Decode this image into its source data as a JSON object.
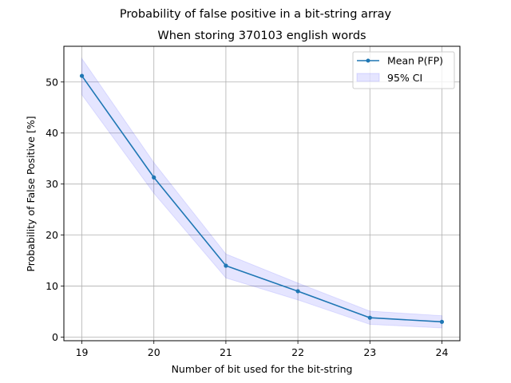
{
  "chart_data": {
    "type": "line",
    "suptitle": "Probability of false positive in a bit-string array",
    "title": "When storing 370103 english words",
    "xlabel": "Number of bit used for the bit-string",
    "ylabel": "Probability of False Positive [%]",
    "x": [
      19,
      20,
      21,
      22,
      23,
      24
    ],
    "series": [
      {
        "name": "Mean P(FP)",
        "values": [
          51.2,
          31.3,
          14.0,
          9.0,
          3.8,
          3.0
        ],
        "color": "#1f77b4"
      }
    ],
    "ci": {
      "name": "95% CI",
      "lower": [
        47.5,
        28.2,
        11.6,
        7.3,
        2.5,
        1.8
      ],
      "upper": [
        54.6,
        34.2,
        16.3,
        10.6,
        5.1,
        4.2
      ],
      "color": "#0000ff"
    },
    "xticks": [
      "19",
      "20",
      "21",
      "22",
      "23",
      "24"
    ],
    "yticks": [
      "0",
      "10",
      "20",
      "30",
      "40",
      "50"
    ],
    "xlim": [
      18.75,
      24.25
    ],
    "ylim": [
      -0.7,
      57.0
    ],
    "grid": true,
    "legend_position": "top-right"
  }
}
